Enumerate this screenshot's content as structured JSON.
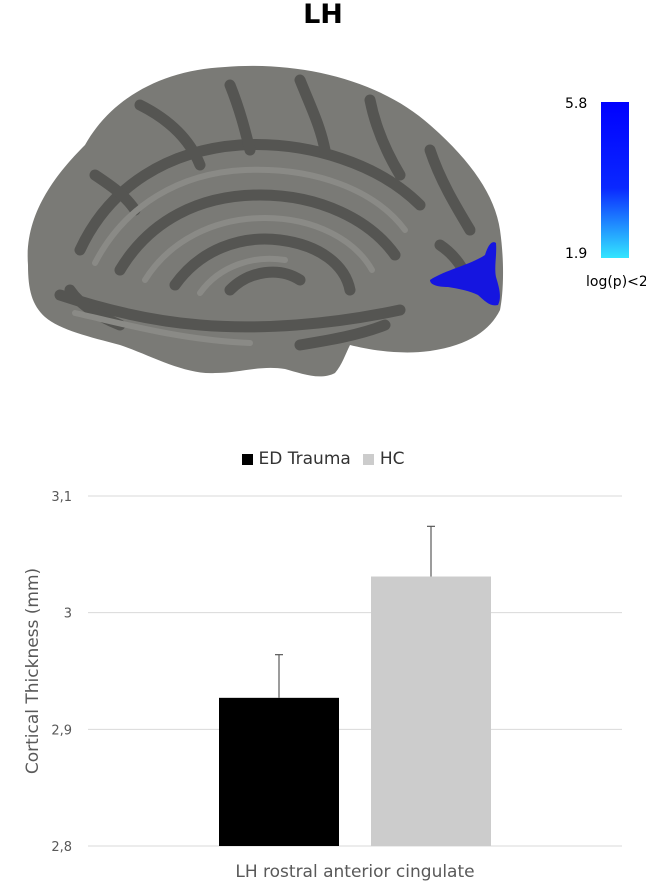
{
  "figure_title": "LH",
  "colorbar": {
    "max_label": "5.8",
    "min_label": "1.9",
    "threshold_label": "log(p)<2",
    "color_top": "#0000ff",
    "color_bottom": "#33e6ff"
  },
  "brain": {
    "surface_color": "#7a7a76",
    "sulcus_color": "#555552",
    "highlight_color": "#1515e0"
  },
  "chart_data": {
    "type": "bar",
    "categories": [
      "LH rostral anterior cingulate"
    ],
    "xlabel": "LH rostral anterior cingulate",
    "ylabel": "Cortical Thickness (mm)",
    "ylim": [
      2.8,
      3.1
    ],
    "yticks": [
      2.8,
      2.9,
      3.0,
      3.1
    ],
    "ytick_labels": [
      "2,8",
      "2,9",
      "3",
      "3,1"
    ],
    "grid": true,
    "legend_position": "top",
    "series": [
      {
        "name": "ED Trauma",
        "color": "#000000",
        "values": [
          2.927
        ],
        "error": [
          0.037
        ]
      },
      {
        "name": "HC",
        "color": "#cccccc",
        "values": [
          3.031
        ],
        "error": [
          0.043
        ]
      }
    ]
  }
}
